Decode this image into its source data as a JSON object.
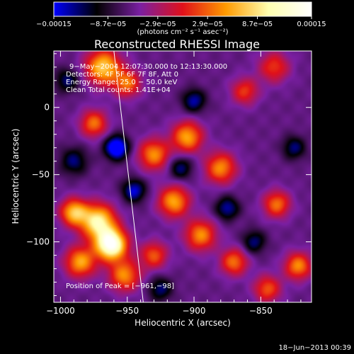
{
  "chart_data": {
    "type": "heatmap",
    "title": "Reconstructed RHESSI Image",
    "xlabel": "Heliocentric X (arcsec)",
    "ylabel": "Heliocentric Y (arcsec)",
    "xlim": [
      -1005,
      -812
    ],
    "ylim": [
      -145,
      42
    ],
    "x_ticks": [
      {
        "value": -1000,
        "label": "−1000"
      },
      {
        "value": -950,
        "label": "−950"
      },
      {
        "value": -900,
        "label": "−900"
      },
      {
        "value": -850,
        "label": "−850"
      }
    ],
    "y_ticks": [
      {
        "value": 0,
        "label": "0"
      },
      {
        "value": -50,
        "label": "−50"
      },
      {
        "value": -100,
        "label": "−100"
      }
    ],
    "colorbar": {
      "min": -0.00015,
      "max": 0.00015,
      "ticks": [
        {
          "value": -0.00015,
          "label": "−0.00015"
        },
        {
          "value": -8.7e-05,
          "label": "−8.7e−05"
        },
        {
          "value": -2.9e-05,
          "label": "−2.9e−05"
        },
        {
          "value": 2.9e-05,
          "label": "2.9e−05"
        },
        {
          "value": 8.7e-05,
          "label": "8.7e−05"
        },
        {
          "value": 0.00015,
          "label": "0.00015"
        }
      ],
      "units": "(photons cm⁻² s⁻¹ asec⁻²)",
      "colors": [
        "#0000ff",
        "#000000",
        "#7a1fa2",
        "#e0101a",
        "#ff9a00",
        "#ffffb0",
        "#ffffff"
      ]
    },
    "annotations": [
      "9−May−2004 12:07:30.000 to 12:13:30.000",
      "Detectors: 4F 5F 6F 7F 8F, Att 0",
      "Energy Range: 25.0 − 50.0 keV",
      "Clean    Total counts: 1.41E+04"
    ],
    "peak": {
      "label": "Position of Peak = [−961,−98]",
      "x": -961,
      "y": -98
    },
    "limb_line": [
      [
        -960,
        42
      ],
      [
        -938,
        -145
      ]
    ],
    "sources": [
      {
        "x": -962,
        "y": -102,
        "amp": 1.0,
        "sigma": 8
      },
      {
        "x": -972,
        "y": -85,
        "amp": 0.75,
        "sigma": 9
      },
      {
        "x": -990,
        "y": -78,
        "amp": 0.6,
        "sigma": 7
      },
      {
        "x": -985,
        "y": -115,
        "amp": 0.55,
        "sigma": 8
      },
      {
        "x": -952,
        "y": -125,
        "amp": 0.5,
        "sigma": 8
      },
      {
        "x": -968,
        "y": 30,
        "amp": 0.65,
        "sigma": 9
      },
      {
        "x": -950,
        "y": 18,
        "amp": 0.45,
        "sigma": 7
      },
      {
        "x": -975,
        "y": -12,
        "amp": 0.45,
        "sigma": 7
      },
      {
        "x": -930,
        "y": -35,
        "amp": 0.5,
        "sigma": 8
      },
      {
        "x": -905,
        "y": -22,
        "amp": 0.55,
        "sigma": 8
      },
      {
        "x": -880,
        "y": -45,
        "amp": 0.5,
        "sigma": 8
      },
      {
        "x": -915,
        "y": -70,
        "amp": 0.55,
        "sigma": 8
      },
      {
        "x": -895,
        "y": -95,
        "amp": 0.5,
        "sigma": 8
      },
      {
        "x": -870,
        "y": -115,
        "amp": 0.45,
        "sigma": 7
      },
      {
        "x": -838,
        "y": -72,
        "amp": 0.45,
        "sigma": 7
      },
      {
        "x": -822,
        "y": -118,
        "amp": 0.5,
        "sigma": 7
      },
      {
        "x": -862,
        "y": 12,
        "amp": 0.35,
        "sigma": 7
      },
      {
        "x": -930,
        "y": -110,
        "amp": 0.4,
        "sigma": 7
      },
      {
        "x": -845,
        "y": -135,
        "amp": 0.4,
        "sigma": 7
      },
      {
        "x": -840,
        "y": 30,
        "amp": 0.35,
        "sigma": 8
      },
      {
        "x": -958,
        "y": -30,
        "amp": -0.6,
        "sigma": 6
      },
      {
        "x": -945,
        "y": -62,
        "amp": -0.4,
        "sigma": 6
      },
      {
        "x": -990,
        "y": -40,
        "amp": -0.3,
        "sigma": 7
      },
      {
        "x": -900,
        "y": 5,
        "amp": -0.35,
        "sigma": 6
      },
      {
        "x": -875,
        "y": -75,
        "amp": -0.35,
        "sigma": 6
      },
      {
        "x": -855,
        "y": -100,
        "amp": -0.3,
        "sigma": 6
      },
      {
        "x": -910,
        "y": -45,
        "amp": -0.3,
        "sigma": 6
      },
      {
        "x": -825,
        "y": -30,
        "amp": -0.3,
        "sigma": 6
      },
      {
        "x": -995,
        "y": 20,
        "amp": -0.3,
        "sigma": 6
      },
      {
        "x": -925,
        "y": -135,
        "amp": -0.3,
        "sigma": 6
      }
    ]
  },
  "footer": {
    "timestamp": "18−Jun−2013 00:39"
  }
}
